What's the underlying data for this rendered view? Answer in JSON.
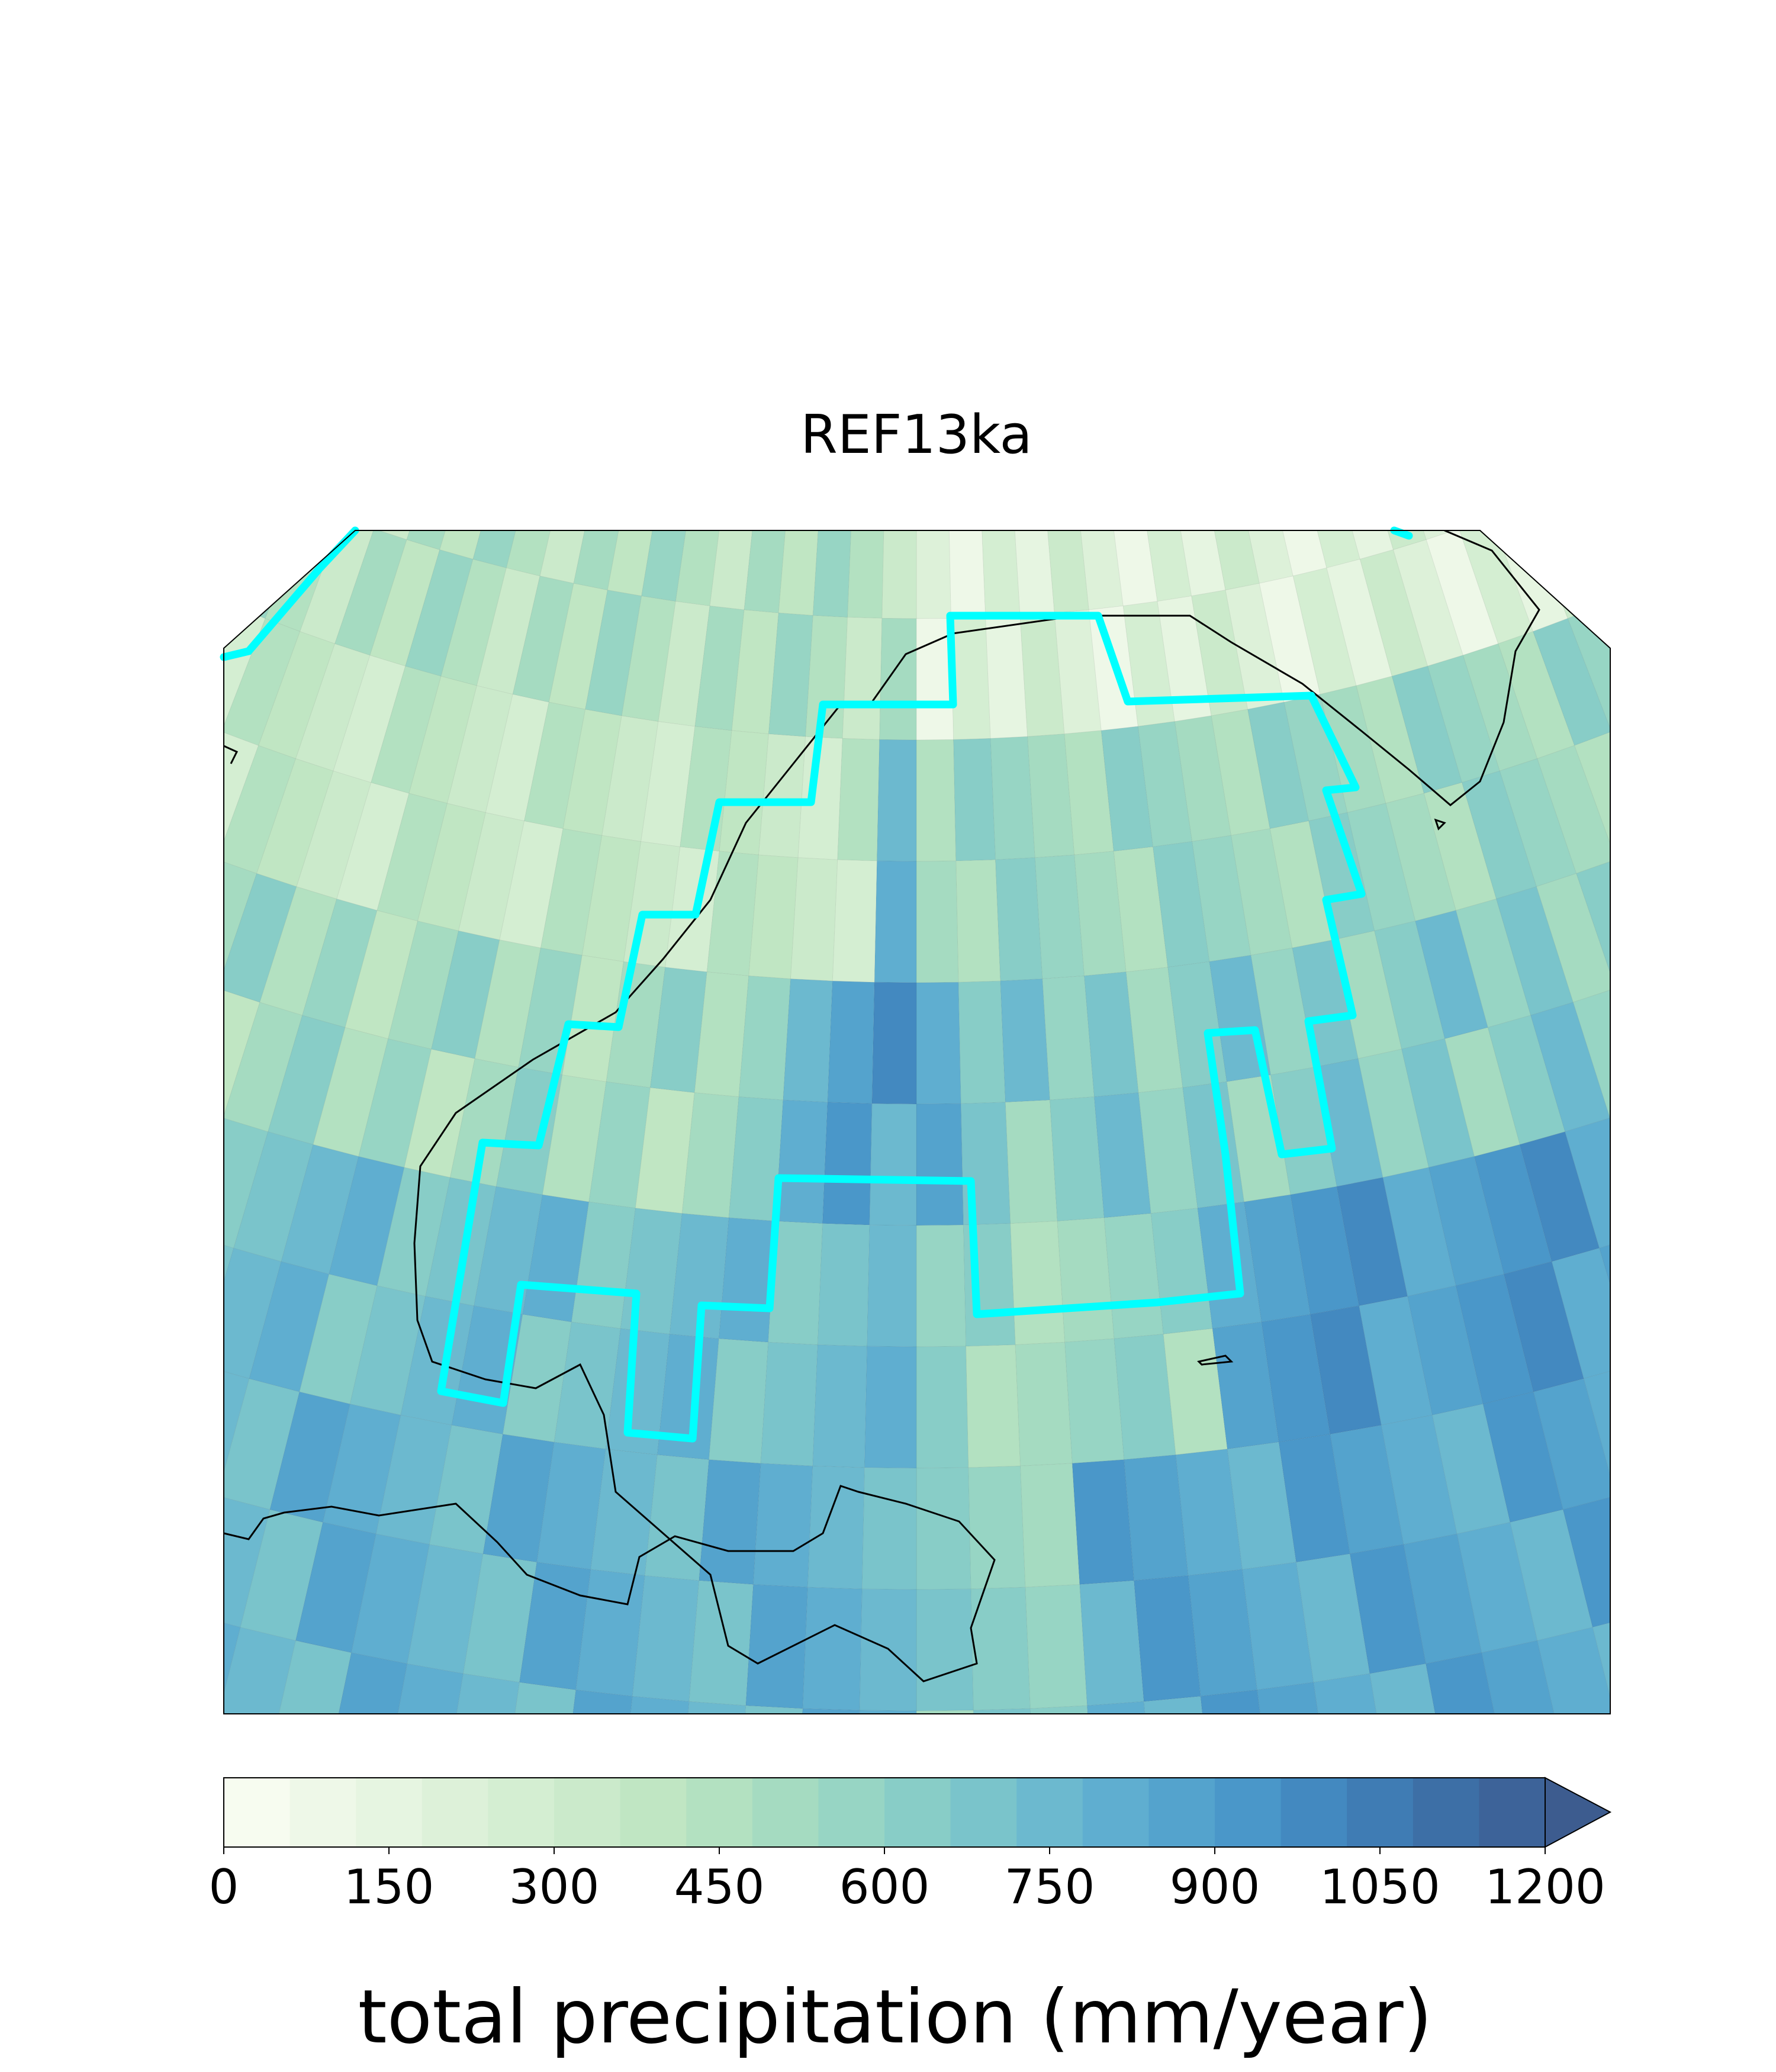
{
  "figure": {
    "title": "REF13ka",
    "projection": "orthographic-like curved grid",
    "map": {
      "field": "total precipitation",
      "grid_cells": "annular bands of colored grid cells",
      "region_outline_color": "#00FFFF",
      "coastline_color": "#000000"
    },
    "colorbar": {
      "label": "total precipitation (mm/year)",
      "min": 0,
      "max": 1200,
      "extend": "max",
      "tick_values": [
        0,
        150,
        300,
        450,
        600,
        750,
        900,
        1050,
        1200
      ],
      "tick_labels": [
        "0",
        "150",
        "300",
        "450",
        "600",
        "750",
        "900",
        "1050",
        "1200"
      ],
      "colors": [
        "#f7fcf0",
        "#eef8e8",
        "#e6f5e1",
        "#ddf1d9",
        "#d4eed2",
        "#cbeacb",
        "#c0e6c3",
        "#b3e1c1",
        "#a5dbc1",
        "#97d5c4",
        "#88cdc7",
        "#7ac4cb",
        "#6cb9cf",
        "#5faed0",
        "#54a3cd",
        "#4a97c9",
        "#4389c0",
        "#3f7cb4",
        "#3d6fa6",
        "#3d6399"
      ],
      "extend_color": "#3d5c8f"
    }
  }
}
